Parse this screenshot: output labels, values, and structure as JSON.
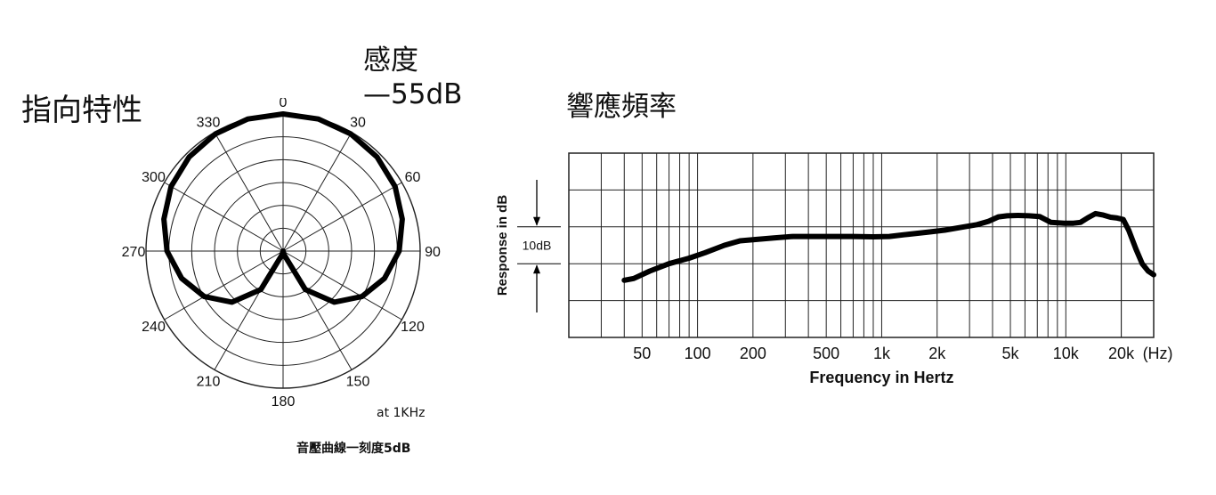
{
  "headings": {
    "polar_title": "指向特性",
    "sensitivity_label": "感度",
    "sensitivity_value": "—55dB",
    "frequency_title": "響應頻率"
  },
  "notes": {
    "test_frequency": "at 1KHz",
    "scale_note": "音壓曲線一刻度5dB"
  },
  "colors": {
    "line": "#000000",
    "grid": "#222222",
    "background": "#ffffff"
  },
  "chart_data": [
    {
      "type": "polar",
      "angle_labels": [
        "0",
        "30",
        "60",
        "90",
        "120",
        "150",
        "180",
        "210",
        "240",
        "270",
        "300",
        "330"
      ],
      "ring_step_db": 5,
      "ring_count": 6,
      "series": [
        {
          "angles_deg": [
            0,
            15,
            30,
            45,
            60,
            75,
            90,
            105,
            120,
            135,
            150,
            165,
            180
          ],
          "level_db": [
            0,
            -0.1,
            -0.4,
            -0.9,
            -1.7,
            -3,
            -4.6,
            -7,
            -10.1,
            -14.2,
            -20.3,
            -29.2,
            -40
          ]
        }
      ]
    },
    {
      "type": "line",
      "xlabel": "Frequency in Hertz",
      "ylabel": "Response in dB",
      "x_scale": "log",
      "xlim": [
        20,
        30000
      ],
      "x_tick_labels": [
        "50",
        "100",
        "200",
        "500",
        "1k",
        "2k",
        "5k",
        "10k",
        "20k"
      ],
      "x_tick_values": [
        50,
        100,
        200,
        500,
        1000,
        2000,
        5000,
        10000,
        20000
      ],
      "x_unit": "(Hz)",
      "y_divisions": 5,
      "y_division_db": 10,
      "y_scale_label": "10dB",
      "series": [
        {
          "x": [
            40,
            45,
            55,
            70,
            90,
            110,
            140,
            170,
            210,
            260,
            330,
            420,
            550,
            700,
            900,
            1100,
            1400,
            1800,
            2200,
            2800,
            3300,
            3800,
            4300,
            4800,
            5500,
            6300,
            7200,
            8300,
            9800,
            11000,
            12000,
            13200,
            14500,
            16000,
            17500,
            19000,
            20500,
            22000,
            24000,
            26000,
            28000,
            30000
          ],
          "y": [
            -14.5,
            -14.0,
            -12.0,
            -10.0,
            -8.5,
            -7.0,
            -5.0,
            -3.8,
            -3.4,
            -3.0,
            -2.6,
            -2.6,
            -2.6,
            -2.6,
            -2.7,
            -2.6,
            -2.0,
            -1.4,
            -0.9,
            0.0,
            0.6,
            1.5,
            2.7,
            3.0,
            3.1,
            3.0,
            2.8,
            1.2,
            1.0,
            1.0,
            1.2,
            2.5,
            3.6,
            3.2,
            2.6,
            2.4,
            2.0,
            -1.0,
            -6.0,
            -10.0,
            -12.0,
            -13.0
          ]
        }
      ]
    }
  ]
}
